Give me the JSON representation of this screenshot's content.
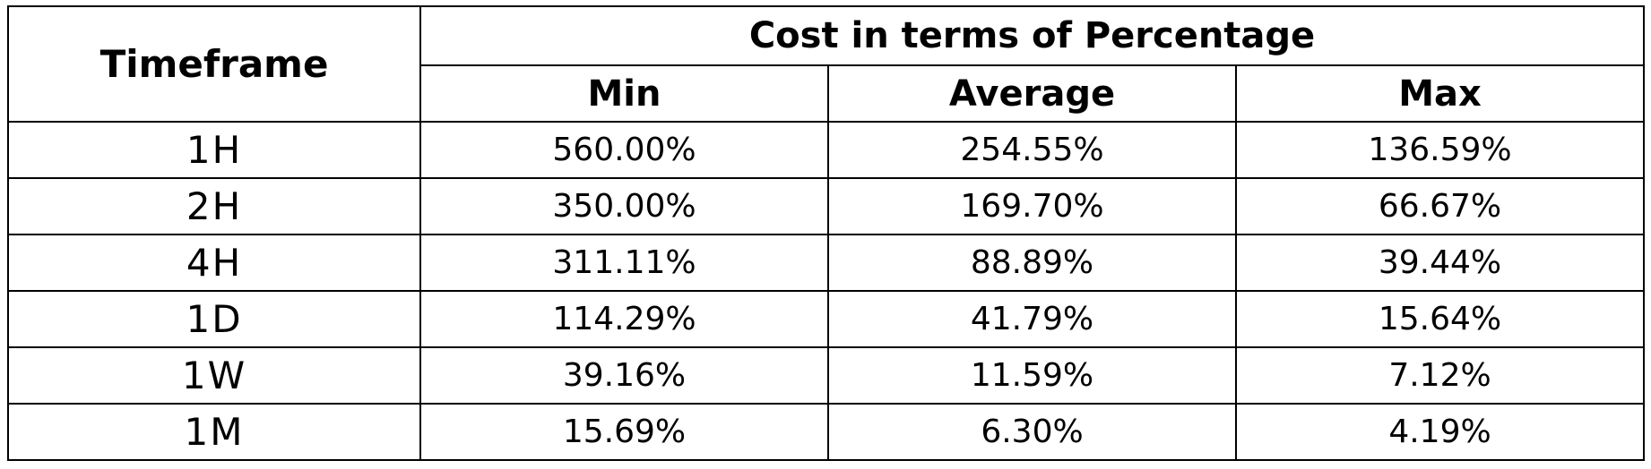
{
  "table": {
    "headers": {
      "timeframe": "Timeframe",
      "group": "Cost in terms of Percentage",
      "min": "Min",
      "average": "Average",
      "max": "Max"
    },
    "rows": [
      {
        "timeframe": "1H",
        "min": "560.00%",
        "average": "254.55%",
        "max": "136.59%"
      },
      {
        "timeframe": "2H",
        "min": "350.00%",
        "average": "169.70%",
        "max": "66.67%"
      },
      {
        "timeframe": "4H",
        "min": "311.11%",
        "average": "88.89%",
        "max": "39.44%"
      },
      {
        "timeframe": "1D",
        "min": "114.29%",
        "average": "41.79%",
        "max": "15.64%"
      },
      {
        "timeframe": "1W",
        "min": "39.16%",
        "average": "11.59%",
        "max": "7.12%"
      },
      {
        "timeframe": "1M",
        "min": "15.69%",
        "average": "6.30%",
        "max": "4.19%"
      }
    ]
  }
}
